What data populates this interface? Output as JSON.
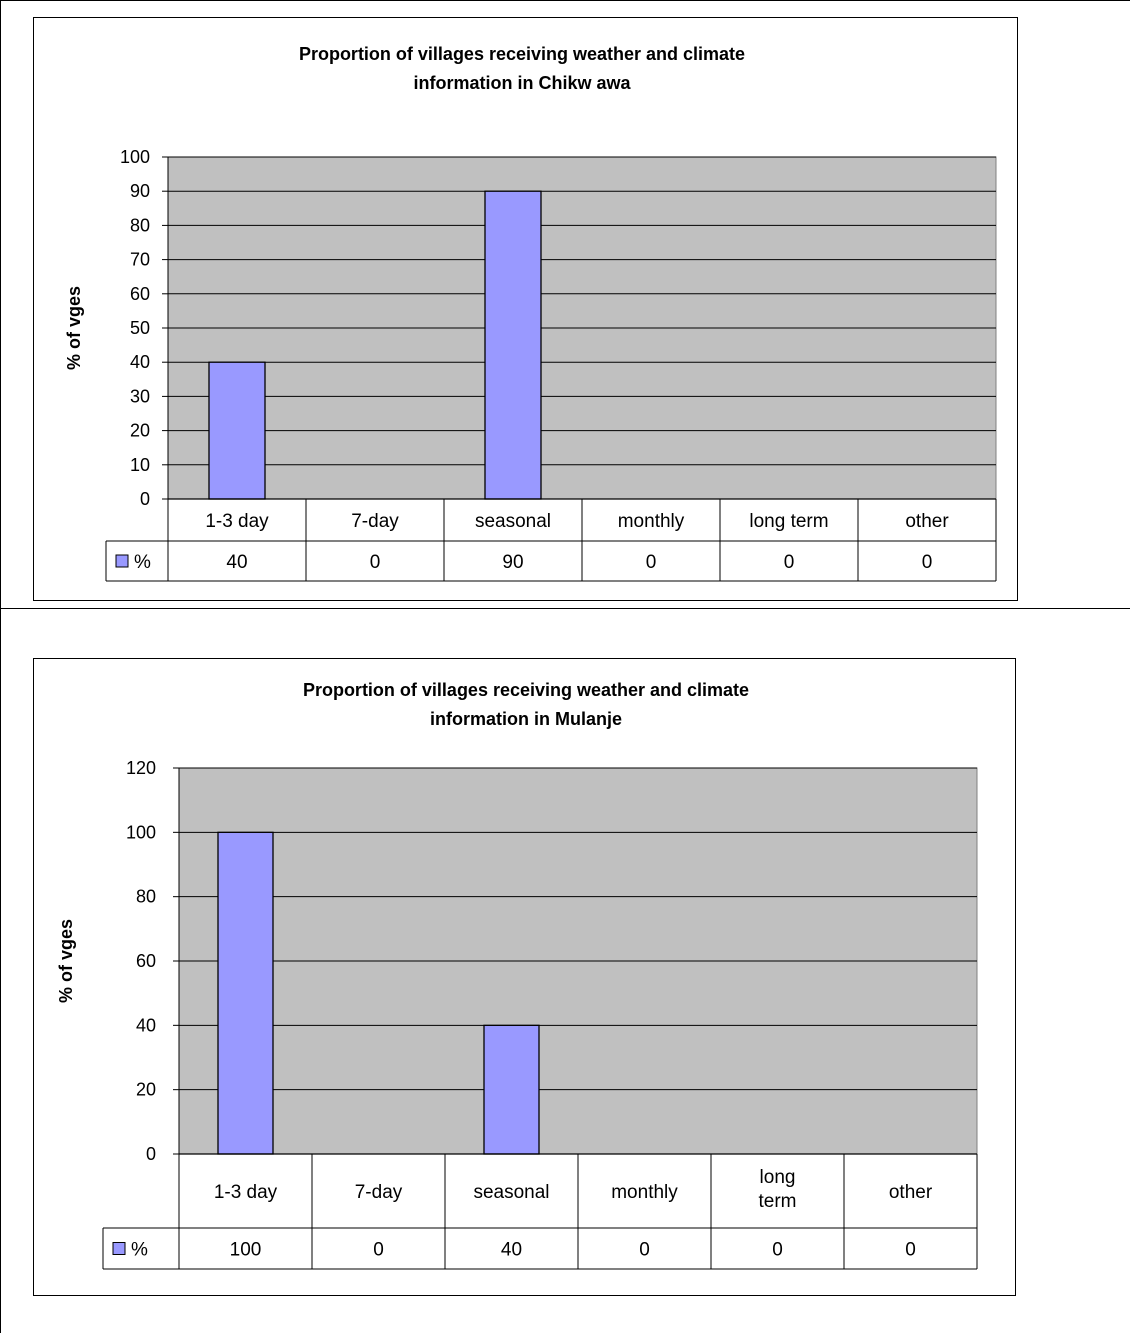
{
  "chart_data": [
    {
      "type": "bar",
      "title": "Proportion of villages receiving weather and climate information in Chikwawa",
      "title_lines": [
        "Proportion of villages receiving weather and climate",
        "information in Chikw awa"
      ],
      "ylabel": "% of vges",
      "xlabel": "",
      "categories": [
        "1-3 day",
        "7-day",
        "seasonal",
        "monthly",
        "long term",
        "other"
      ],
      "series": [
        {
          "name": "%",
          "values": [
            40,
            0,
            90,
            0,
            0,
            0
          ]
        }
      ],
      "ylim": [
        0,
        100
      ],
      "yticks": [
        0,
        10,
        20,
        30,
        40,
        50,
        60,
        70,
        80,
        90,
        100
      ],
      "grid": true,
      "legend": "data-table",
      "colors": {
        "bar": "#9999ff",
        "plot_bg": "#c0c0c0"
      }
    },
    {
      "type": "bar",
      "title": "Proportion of villages receiving weather and climate information in Mulanje",
      "title_lines": [
        "Proportion of villages receiving weather and climate",
        "information in Mulanje"
      ],
      "ylabel": "% of vges",
      "xlabel": "",
      "categories": [
        "1-3 day",
        "7-day",
        "seasonal",
        "monthly",
        "long term",
        "other"
      ],
      "series": [
        {
          "name": "%",
          "values": [
            100,
            0,
            40,
            0,
            0,
            0
          ]
        }
      ],
      "ylim": [
        0,
        120
      ],
      "yticks": [
        0,
        20,
        40,
        60,
        80,
        100,
        120
      ],
      "grid": true,
      "legend": "data-table",
      "colors": {
        "bar": "#9999ff",
        "plot_bg": "#c0c0c0"
      }
    }
  ]
}
